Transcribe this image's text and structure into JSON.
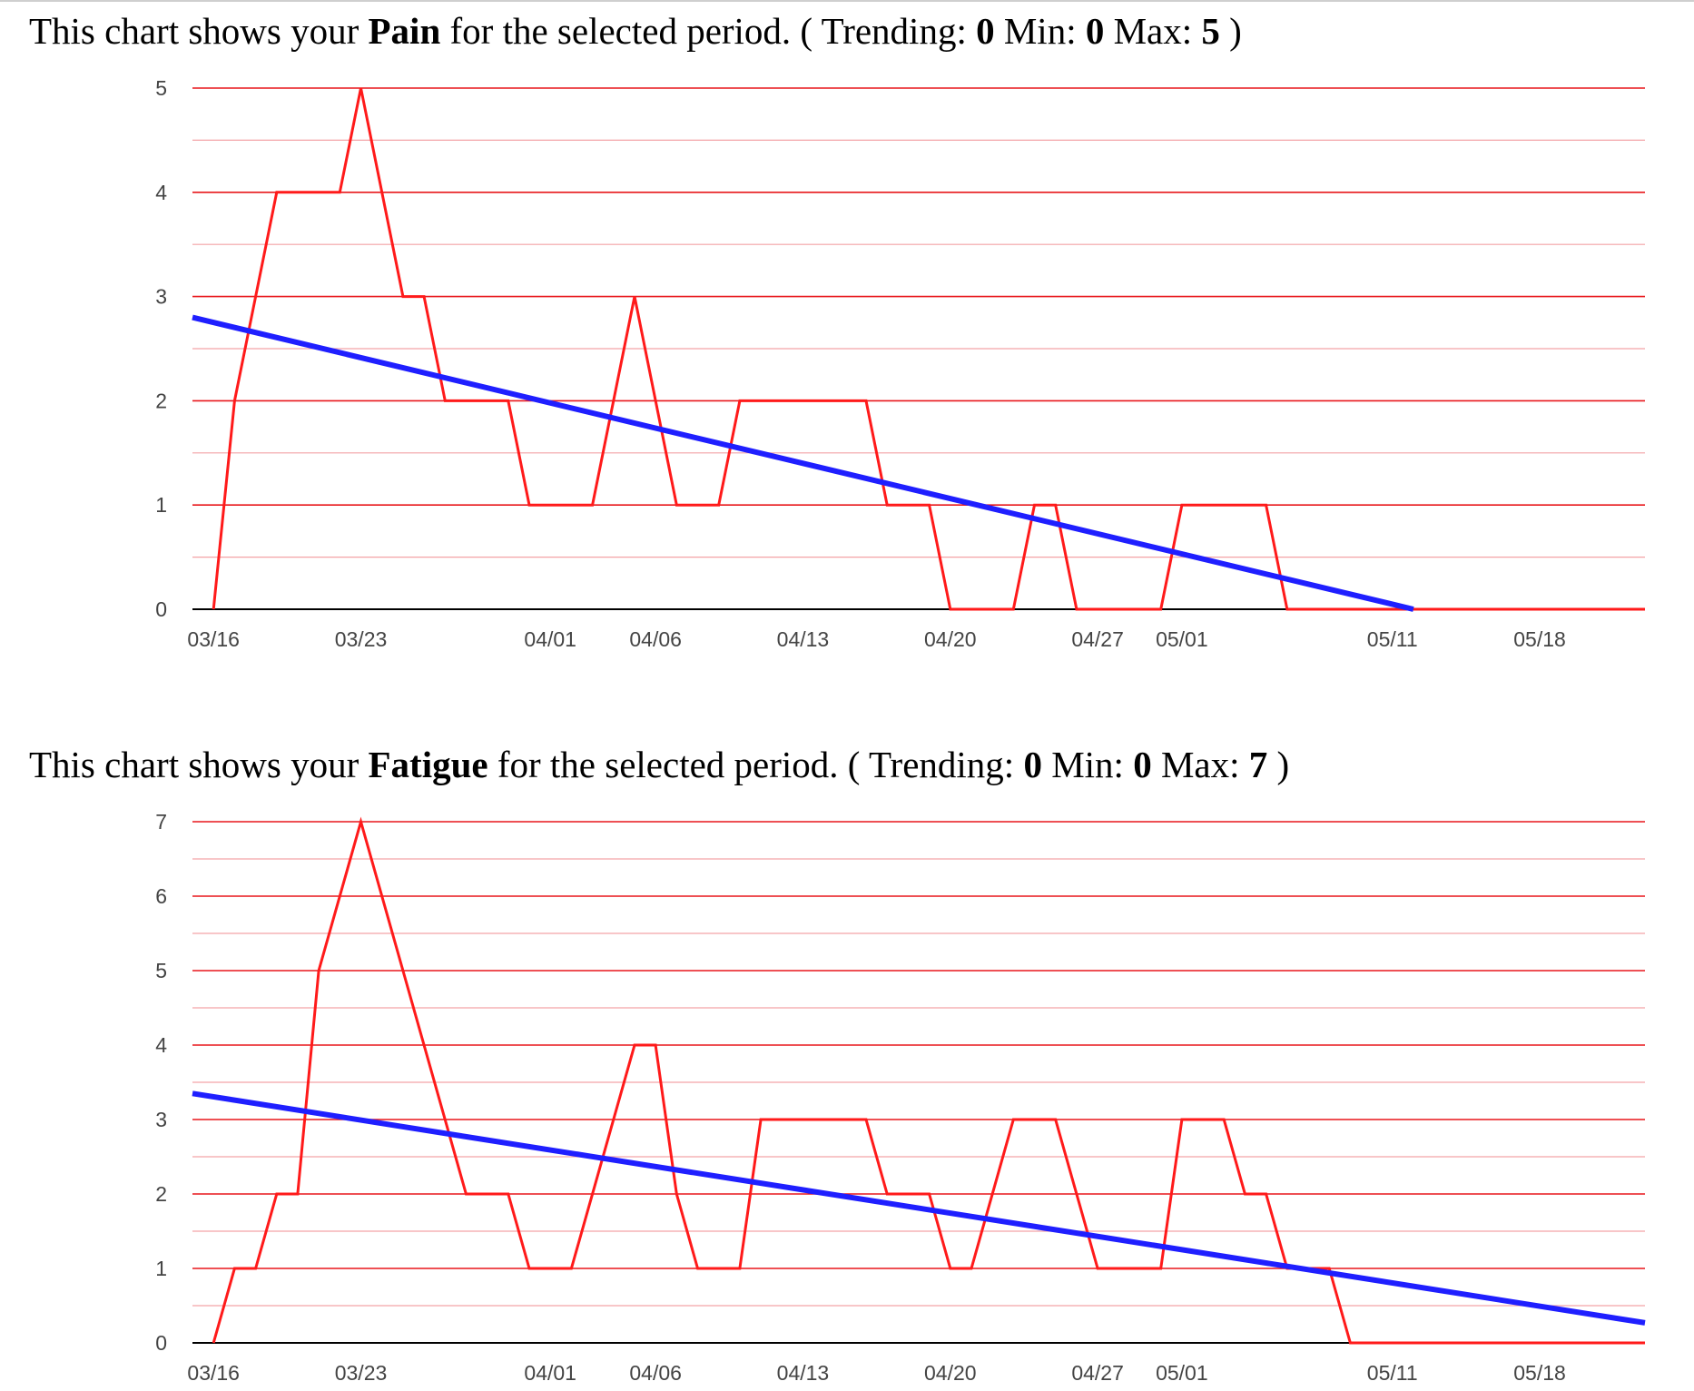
{
  "colors": {
    "series": "#ff1a1a",
    "trend": "#1f1fff",
    "major_grid": "#e8171b",
    "minor_grid": "#f3a3a6",
    "baseline": "#000000",
    "tick_text": "#444444"
  },
  "captions": [
    {
      "prefix": "This chart shows your ",
      "metric": "Pain",
      "middle": " for the selected period. ( Trending: ",
      "trending": "0",
      "min_label": " Min: ",
      "min": "0",
      "max_label": " Max: ",
      "max": "5",
      "suffix": " )"
    },
    {
      "prefix": "This chart shows your ",
      "metric": "Fatigue",
      "middle": " for the selected period. ( Trending: ",
      "trending": "0",
      "min_label": " Min: ",
      "min": "0",
      "max_label": " Max: ",
      "max": "7",
      "suffix": " )"
    }
  ],
  "chart_data": [
    {
      "type": "line",
      "title": "",
      "xlabel": "",
      "ylabel": "",
      "x_domain": [
        "2020-03-15",
        "2020-05-23"
      ],
      "ylim": [
        0,
        5
      ],
      "y_ticks": [
        0,
        1,
        2,
        3,
        4,
        5
      ],
      "minor_grid_step": 0.5,
      "x_ticks": [
        {
          "date": "2020-03-16",
          "label": "03/16"
        },
        {
          "date": "2020-03-23",
          "label": "03/23"
        },
        {
          "date": "2020-04-01",
          "label": "04/01"
        },
        {
          "date": "2020-04-06",
          "label": "04/06"
        },
        {
          "date": "2020-04-13",
          "label": "04/13"
        },
        {
          "date": "2020-04-20",
          "label": "04/20"
        },
        {
          "date": "2020-04-27",
          "label": "04/27"
        },
        {
          "date": "2020-05-01",
          "label": "05/01"
        },
        {
          "date": "2020-05-11",
          "label": "05/11"
        },
        {
          "date": "2020-05-18",
          "label": "05/18"
        }
      ],
      "legend": "none",
      "grid": true,
      "series": [
        {
          "kind": "data",
          "points": [
            [
              "2020-03-16",
              0
            ],
            [
              "2020-03-17",
              2
            ],
            [
              "2020-03-19",
              4
            ],
            [
              "2020-03-22",
              4
            ],
            [
              "2020-03-23",
              5
            ],
            [
              "2020-03-25",
              3
            ],
            [
              "2020-03-26",
              3
            ],
            [
              "2020-03-27",
              2
            ],
            [
              "2020-03-30",
              2
            ],
            [
              "2020-03-31",
              1
            ],
            [
              "2020-04-03",
              1
            ],
            [
              "2020-04-05",
              3
            ],
            [
              "2020-04-07",
              1
            ],
            [
              "2020-04-09",
              1
            ],
            [
              "2020-04-10",
              2
            ],
            [
              "2020-04-16",
              2
            ],
            [
              "2020-04-17",
              1
            ],
            [
              "2020-04-19",
              1
            ],
            [
              "2020-04-20",
              0
            ],
            [
              "2020-04-23",
              0
            ],
            [
              "2020-04-24",
              1
            ],
            [
              "2020-04-25",
              1
            ],
            [
              "2020-04-26",
              0
            ],
            [
              "2020-04-30",
              0
            ],
            [
              "2020-05-01",
              1
            ],
            [
              "2020-05-05",
              1
            ],
            [
              "2020-05-06",
              0
            ],
            [
              "2020-05-23",
              0
            ]
          ]
        },
        {
          "kind": "trend",
          "points": [
            [
              "2020-03-15",
              2.8
            ],
            [
              "2020-05-12",
              0.0
            ]
          ]
        }
      ]
    },
    {
      "type": "line",
      "title": "",
      "xlabel": "",
      "ylabel": "",
      "x_domain": [
        "2020-03-15",
        "2020-05-23"
      ],
      "ylim": [
        0,
        7
      ],
      "y_ticks": [
        0,
        1,
        2,
        3,
        4,
        5,
        6,
        7
      ],
      "minor_grid_step": 0.5,
      "x_ticks": [
        {
          "date": "2020-03-16",
          "label": "03/16"
        },
        {
          "date": "2020-03-23",
          "label": "03/23"
        },
        {
          "date": "2020-04-01",
          "label": "04/01"
        },
        {
          "date": "2020-04-06",
          "label": "04/06"
        },
        {
          "date": "2020-04-13",
          "label": "04/13"
        },
        {
          "date": "2020-04-20",
          "label": "04/20"
        },
        {
          "date": "2020-04-27",
          "label": "04/27"
        },
        {
          "date": "2020-05-01",
          "label": "05/01"
        },
        {
          "date": "2020-05-11",
          "label": "05/11"
        },
        {
          "date": "2020-05-18",
          "label": "05/18"
        }
      ],
      "legend": "none",
      "grid": true,
      "series": [
        {
          "kind": "data",
          "points": [
            [
              "2020-03-16",
              0
            ],
            [
              "2020-03-17",
              1
            ],
            [
              "2020-03-18",
              1
            ],
            [
              "2020-03-19",
              2
            ],
            [
              "2020-03-20",
              2
            ],
            [
              "2020-03-21",
              5
            ],
            [
              "2020-03-23",
              7
            ],
            [
              "2020-03-25",
              5
            ],
            [
              "2020-03-28",
              2
            ],
            [
              "2020-03-30",
              2
            ],
            [
              "2020-03-31",
              1
            ],
            [
              "2020-04-02",
              1
            ],
            [
              "2020-04-05",
              4
            ],
            [
              "2020-04-06",
              4
            ],
            [
              "2020-04-07",
              2
            ],
            [
              "2020-04-08",
              1
            ],
            [
              "2020-04-10",
              1
            ],
            [
              "2020-04-11",
              3
            ],
            [
              "2020-04-16",
              3
            ],
            [
              "2020-04-17",
              2
            ],
            [
              "2020-04-19",
              2
            ],
            [
              "2020-04-20",
              1
            ],
            [
              "2020-04-21",
              1
            ],
            [
              "2020-04-23",
              3
            ],
            [
              "2020-04-25",
              3
            ],
            [
              "2020-04-27",
              1
            ],
            [
              "2020-04-30",
              1
            ],
            [
              "2020-05-01",
              3
            ],
            [
              "2020-05-03",
              3
            ],
            [
              "2020-05-04",
              2
            ],
            [
              "2020-05-05",
              2
            ],
            [
              "2020-05-06",
              1
            ],
            [
              "2020-05-08",
              1
            ],
            [
              "2020-05-09",
              0
            ],
            [
              "2020-05-23",
              0
            ]
          ]
        },
        {
          "kind": "trend",
          "points": [
            [
              "2020-03-15",
              3.35
            ],
            [
              "2020-05-23",
              0.27
            ]
          ]
        }
      ]
    }
  ]
}
